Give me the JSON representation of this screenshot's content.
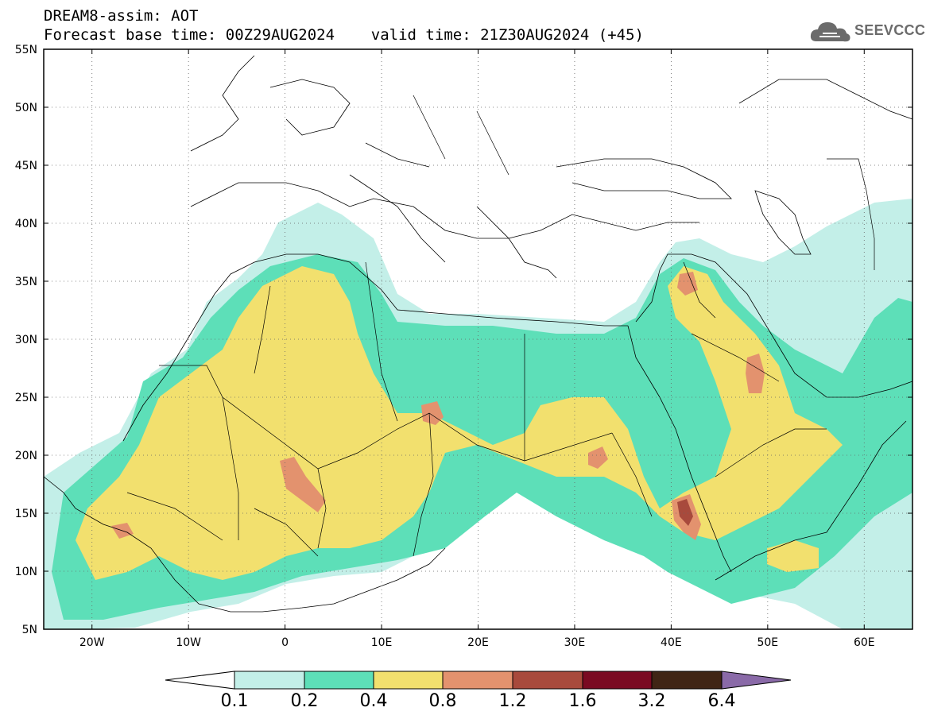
{
  "header": {
    "line1": "DREAM8-assim: AOT",
    "line2": "Forecast base time: 00Z29AUG2024    valid time: 21Z30AUG2024 (+45)"
  },
  "logo": {
    "text": "SEEVCCC",
    "icon": "cloud-logo-icon"
  },
  "map": {
    "lon_range": [
      -25,
      65
    ],
    "lat_range": [
      5,
      55
    ],
    "lon_ticks": [
      {
        "value": -20,
        "label": "20W"
      },
      {
        "value": -10,
        "label": "10W"
      },
      {
        "value": 0,
        "label": "0"
      },
      {
        "value": 10,
        "label": "10E"
      },
      {
        "value": 20,
        "label": "20E"
      },
      {
        "value": 30,
        "label": "30E"
      },
      {
        "value": 40,
        "label": "40E"
      },
      {
        "value": 50,
        "label": "50E"
      },
      {
        "value": 60,
        "label": "60E"
      }
    ],
    "lat_ticks": [
      {
        "value": 55,
        "label": "55N"
      },
      {
        "value": 50,
        "label": "50N"
      },
      {
        "value": 45,
        "label": "45N"
      },
      {
        "value": 40,
        "label": "40N"
      },
      {
        "value": 35,
        "label": "35N"
      },
      {
        "value": 30,
        "label": "30N"
      },
      {
        "value": 25,
        "label": "25N"
      },
      {
        "value": 20,
        "label": "20N"
      },
      {
        "value": 15,
        "label": "15N"
      },
      {
        "value": 10,
        "label": "10N"
      },
      {
        "value": 5,
        "label": "5N"
      }
    ],
    "grid": "dotted"
  },
  "legend": {
    "labels": [
      "0.1",
      "0.2",
      "0.4",
      "0.8",
      "1.2",
      "1.6",
      "3.2",
      "6.4"
    ],
    "colors": [
      "#ffffff",
      "#c3efe8",
      "#5ddfb8",
      "#f2e06e",
      "#e3926e",
      "#a84a3c",
      "#7a0a22",
      "#402515",
      "#8a6aa8"
    ]
  }
}
